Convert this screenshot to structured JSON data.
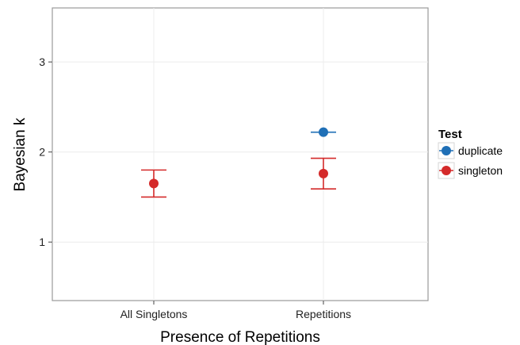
{
  "chart_data": {
    "type": "scatter",
    "title": "",
    "xlabel": "Presence of Repetitions",
    "ylabel": "Bayesian k",
    "categories": [
      "All Singletons",
      "Repetitions"
    ],
    "ylim": [
      0.35,
      3.6
    ],
    "yticks": [
      "1",
      "2",
      "3"
    ],
    "grid": true,
    "legend": {
      "title": "Test",
      "position": "right"
    },
    "series": [
      {
        "name": "duplicate",
        "color": "#1f6fb6",
        "points": [
          {
            "category": "Repetitions",
            "y": 2.22,
            "ymin": 2.21,
            "ymax": 2.23
          }
        ]
      },
      {
        "name": "singleton",
        "color": "#d42a2a",
        "points": [
          {
            "category": "All Singletons",
            "y": 1.65,
            "ymin": 1.5,
            "ymax": 1.8
          },
          {
            "category": "Repetitions",
            "y": 1.76,
            "ymin": 1.59,
            "ymax": 1.93
          }
        ]
      }
    ]
  }
}
